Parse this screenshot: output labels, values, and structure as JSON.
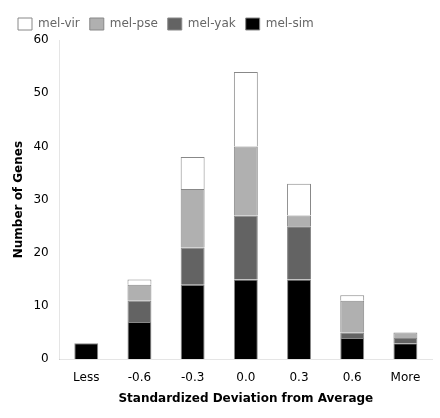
{
  "chart_data": {
    "type": "bar",
    "xlabel": "Standardized Deviation from Average",
    "ylabel": "Number of Genes",
    "categories": [
      "Less",
      "-0.6",
      "-0.3",
      "0.0",
      "0.3",
      "0.6",
      "More"
    ],
    "series": [
      {
        "name": "mel-sim",
        "color": "#000000",
        "values": [
          3,
          7,
          14,
          15,
          15,
          4,
          3
        ]
      },
      {
        "name": "mel-yak",
        "color": "#636363",
        "values": [
          0,
          4,
          7,
          12,
          10,
          1,
          1
        ]
      },
      {
        "name": "mel-pse",
        "color": "#b0b0b0",
        "values": [
          0,
          3,
          11,
          13,
          2,
          6,
          1
        ]
      },
      {
        "name": "mel-vir",
        "color": "#ffffff",
        "values": [
          0,
          1,
          6,
          14,
          6,
          1,
          0
        ]
      }
    ],
    "ylim": [
      0,
      60
    ],
    "yticks": [
      0,
      10,
      20,
      30,
      40,
      50,
      60
    ],
    "stacked": true,
    "grid": false,
    "legend": "upper left"
  }
}
